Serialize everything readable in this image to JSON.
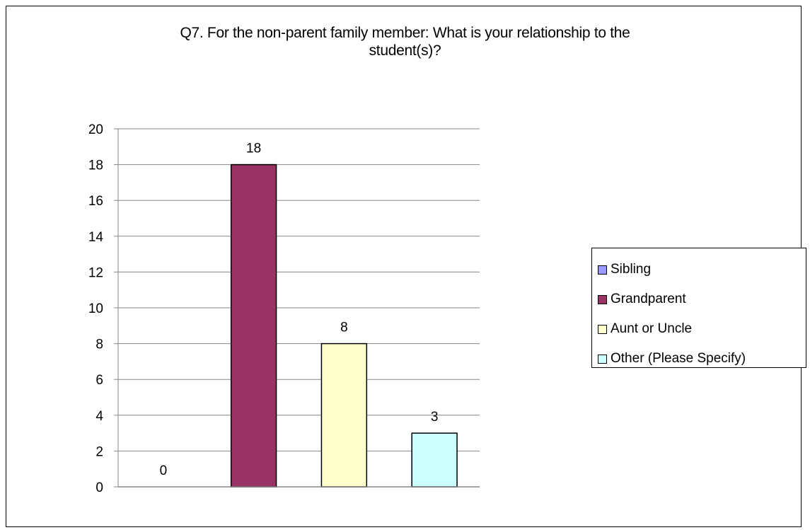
{
  "chart_data": {
    "type": "bar",
    "title_lines": [
      "Q7.  For the non-parent family member: What is your relationship to the",
      "student(s)?"
    ],
    "categories": [
      "Sibling",
      "Grandparent",
      "Aunt or Uncle",
      "Other (Please Specify)"
    ],
    "values": [
      0,
      18,
      8,
      3
    ],
    "data_labels": [
      "0",
      "18",
      "8",
      "3"
    ],
    "colors": [
      "#9999ff",
      "#993366",
      "#ffffcc",
      "#ccffff"
    ],
    "ylim": [
      0,
      20
    ],
    "yticks": [
      0,
      2,
      4,
      6,
      8,
      10,
      12,
      14,
      16,
      18,
      20
    ],
    "ytick_labels": [
      "0",
      "2",
      "4",
      "6",
      "8",
      "10",
      "12",
      "14",
      "16",
      "18",
      "20"
    ],
    "grid": true,
    "legend_position": "right",
    "xlabel": "",
    "ylabel": ""
  },
  "legend": {
    "items": [
      {
        "label": "Sibling"
      },
      {
        "label": "Grandparent"
      },
      {
        "label": "Aunt or Uncle"
      },
      {
        "label": "Other (Please Specify)"
      }
    ]
  }
}
